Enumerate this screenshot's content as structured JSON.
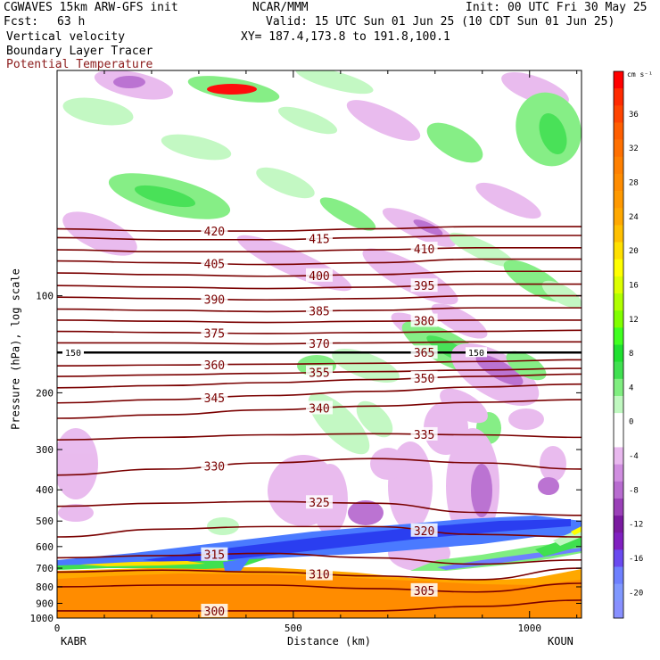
{
  "header": {
    "model": "CGWAVES 15km ARW-GFS init",
    "agency": "NCAR/MMM",
    "init": "Init: 00 UTC Fri 30 May 25",
    "fcst_label": "Fcst:",
    "fcst_value": "63 h",
    "valid": "Valid: 15 UTC Sun 01 Jun 25 (10 CDT Sun 01 Jun 25)",
    "field1": "Vertical velocity",
    "field2": "Boundary Layer Tracer",
    "field3": "Potential Temperature",
    "xy": "XY= 187.4,173.8 to 191.8,100.1"
  },
  "colors": {
    "theta": "#7a0000",
    "field3_text": "#8b1a1a"
  },
  "chart_data": {
    "type": "contour-cross-section",
    "xlabel": "Distance (km)",
    "ylabel": "Pressure (hPa), log scale",
    "xlim": [
      0,
      1110
    ],
    "ylim": [
      1000,
      20
    ],
    "y_scale": "log",
    "x_ticks": [
      0,
      500,
      1000
    ],
    "y_ticks": [
      100,
      200,
      300,
      400,
      500,
      600,
      700,
      800,
      900,
      1000
    ],
    "endpoints": {
      "left": "KABR",
      "right": "KOUN"
    },
    "colorbar": {
      "units": "cm s⁻¹",
      "tick_labels": [
        "36",
        "32",
        "28",
        "24",
        "20",
        "16",
        "12",
        "8",
        "4",
        "0",
        "-4",
        "-8",
        "-12",
        "-16",
        "-20"
      ],
      "levels": [
        40,
        38,
        36,
        34,
        32,
        30,
        28,
        26,
        24,
        22,
        20,
        18,
        16,
        14,
        12,
        10,
        8,
        6,
        4,
        2,
        0,
        -2,
        -4,
        -6,
        -8,
        -10,
        -12,
        -14,
        -16,
        -18,
        -20,
        -22
      ],
      "colors": [
        "#ff0000",
        "#ff2a00",
        "#ff4400",
        "#ff5e00",
        "#ff7000",
        "#ff8000",
        "#ff8c00",
        "#ff9900",
        "#ffa800",
        "#ffc000",
        "#ffe000",
        "#ffff00",
        "#ddff00",
        "#b0ff00",
        "#80ff00",
        "#40ff20",
        "#20e030",
        "#40e050",
        "#80ee80",
        "#c0f8c0",
        "#ffffff",
        "#ffffff",
        "#e8b8ee",
        "#d08ee0",
        "#b86cd0",
        "#9a40b8",
        "#7a1aa0",
        "#8020c0",
        "#6a4af0",
        "#6e80ff",
        "#8098ff",
        "#8890ff"
      ]
    },
    "theta_contours": [
      {
        "label": "420",
        "p": [
          62,
          63,
          63,
          62,
          61,
          61
        ]
      },
      {
        "label": "415",
        "p": [
          66,
          67,
          67,
          66,
          65,
          65
        ]
      },
      {
        "label": "410",
        "p": [
          72,
          73,
          73,
          72,
          71,
          71
        ]
      },
      {
        "label": "405",
        "p": [
          78,
          79,
          80,
          79,
          77,
          77
        ]
      },
      {
        "label": "400",
        "p": [
          85,
          86,
          87,
          86,
          84,
          84
        ]
      },
      {
        "label": "395",
        "p": [
          93,
          94,
          95,
          94,
          92,
          92
        ]
      },
      {
        "label": "390",
        "p": [
          101,
          102,
          103,
          102,
          100,
          100
        ]
      },
      {
        "label": "385",
        "p": [
          110,
          111,
          112,
          111,
          109,
          109
        ]
      },
      {
        "label": "380",
        "p": [
          119,
          120,
          121,
          120,
          119,
          119
        ]
      },
      {
        "label": "375",
        "p": [
          129,
          130,
          131,
          130,
          129,
          128
        ]
      },
      {
        "label": "370",
        "p": [
          140,
          140,
          141,
          140,
          139,
          139
        ]
      },
      {
        "label": "365",
        "p": [
          150,
          150,
          150,
          150,
          150,
          150
        ]
      },
      {
        "label": "360",
        "p": [
          165,
          164,
          163,
          162,
          160,
          158
        ]
      },
      {
        "label": "355",
        "p": [
          178,
          176,
          174,
          172,
          170,
          168
        ]
      },
      {
        "label": "350",
        "p": [
          193,
          190,
          186,
          182,
          178,
          175
        ]
      },
      {
        "label": "345",
        "p": [
          215,
          210,
          204,
          198,
          192,
          188
        ]
      },
      {
        "label": "340",
        "p": [
          240,
          234,
          226,
          220,
          214,
          210
        ]
      },
      {
        "label": "335",
        "p": [
          280,
          275,
          270,
          268,
          270,
          275
        ]
      },
      {
        "label": "330",
        "p": [
          360,
          345,
          330,
          320,
          330,
          345
        ]
      },
      {
        "label": "325",
        "p": [
          450,
          440,
          435,
          440,
          470,
          480
        ]
      },
      {
        "label": "320",
        "p": [
          560,
          530,
          520,
          520,
          550,
          560
        ]
      },
      {
        "label": "315",
        "p": [
          650,
          640,
          630,
          650,
          680,
          660
        ]
      },
      {
        "label": "310",
        "p": [
          720,
          710,
          720,
          740,
          760,
          700
        ]
      },
      {
        "label": "305",
        "p": [
          800,
          790,
          790,
          810,
          830,
          780
        ]
      },
      {
        "label": "300",
        "p": [
          950,
          950,
          950,
          950,
          920,
          880
        ]
      }
    ],
    "contour_x": [
      0,
      222,
      444,
      666,
      888,
      1110
    ],
    "tropopause_level": 150,
    "tropopause_label": "150"
  }
}
